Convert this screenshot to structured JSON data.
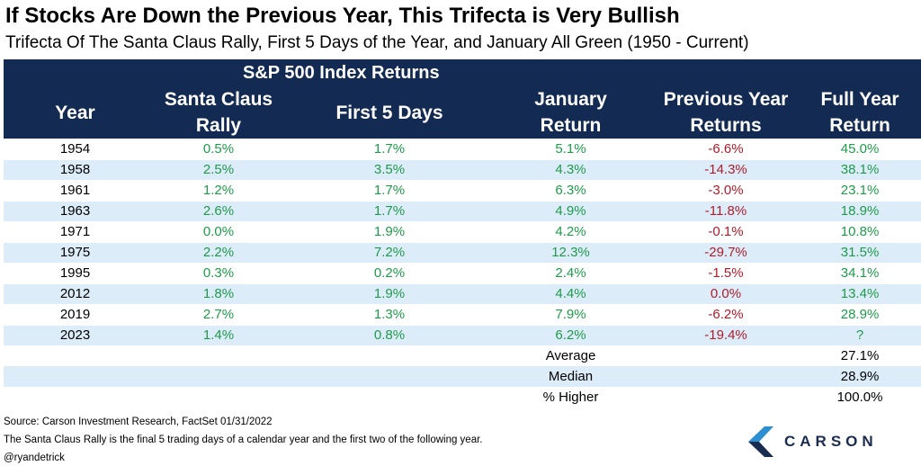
{
  "title": "If Stocks Are Down the Previous Year, This Trifecta is Very Bullish",
  "subtitle": "Trifecta Of The Santa Claus Rally, First 5 Days of the Year, and January All Green (1950 - Current)",
  "chart_data": {
    "type": "table",
    "super_header": "S&P 500 Index Returns",
    "columns": [
      {
        "line1": "Year",
        "line2": ""
      },
      {
        "line1": "Santa Claus",
        "line2": "Rally"
      },
      {
        "line1": "First 5 Days",
        "line2": ""
      },
      {
        "line1": "January",
        "line2": "Return"
      },
      {
        "line1": "Previous Year",
        "line2": "Returns"
      },
      {
        "line1": "Full Year",
        "line2": "Return"
      }
    ],
    "rows": [
      {
        "year": "1954",
        "santa": "0.5%",
        "first5": "1.7%",
        "january": "5.1%",
        "previous": "-6.6%",
        "full": "45.0%"
      },
      {
        "year": "1958",
        "santa": "2.5%",
        "first5": "3.5%",
        "january": "4.3%",
        "previous": "-14.3%",
        "full": "38.1%"
      },
      {
        "year": "1961",
        "santa": "1.2%",
        "first5": "1.7%",
        "january": "6.3%",
        "previous": "-3.0%",
        "full": "23.1%"
      },
      {
        "year": "1963",
        "santa": "2.6%",
        "first5": "1.7%",
        "january": "4.9%",
        "previous": "-11.8%",
        "full": "18.9%"
      },
      {
        "year": "1971",
        "santa": "0.0%",
        "first5": "1.9%",
        "january": "4.2%",
        "previous": "-0.1%",
        "full": "10.8%"
      },
      {
        "year": "1975",
        "santa": "2.2%",
        "first5": "7.2%",
        "january": "12.3%",
        "previous": "-29.7%",
        "full": "31.5%"
      },
      {
        "year": "1995",
        "santa": "0.3%",
        "first5": "0.2%",
        "january": "2.4%",
        "previous": "-1.5%",
        "full": "34.1%"
      },
      {
        "year": "2012",
        "santa": "1.8%",
        "first5": "1.9%",
        "january": "4.4%",
        "previous": "0.0%",
        "full": "13.4%"
      },
      {
        "year": "2019",
        "santa": "2.7%",
        "first5": "1.3%",
        "january": "7.9%",
        "previous": "-6.2%",
        "full": "28.9%"
      },
      {
        "year": "2023",
        "santa": "1.4%",
        "first5": "0.8%",
        "january": "6.2%",
        "previous": "-19.4%",
        "full": "?"
      }
    ],
    "summary": [
      {
        "label": "Average",
        "value": "27.1%"
      },
      {
        "label": "Median",
        "value": "28.9%"
      },
      {
        "label": "% Higher",
        "value": "100.0%"
      }
    ]
  },
  "footer": {
    "source": "Source: Carson Investment Research, FactSet 01/31/2022",
    "note": "The Santa Claus Rally is the final 5 trading days of a calendar year and the first two of the following year.",
    "handle": "@ryandetrick"
  },
  "logo": {
    "text": "CARSON",
    "icon": "carson-chevron-icon"
  },
  "colors": {
    "header_bg": "#132b52",
    "stripe": "#dcecf8",
    "positive": "#1e9b4a",
    "negative": "#b01c2b",
    "brand": "#1a2c4f"
  }
}
